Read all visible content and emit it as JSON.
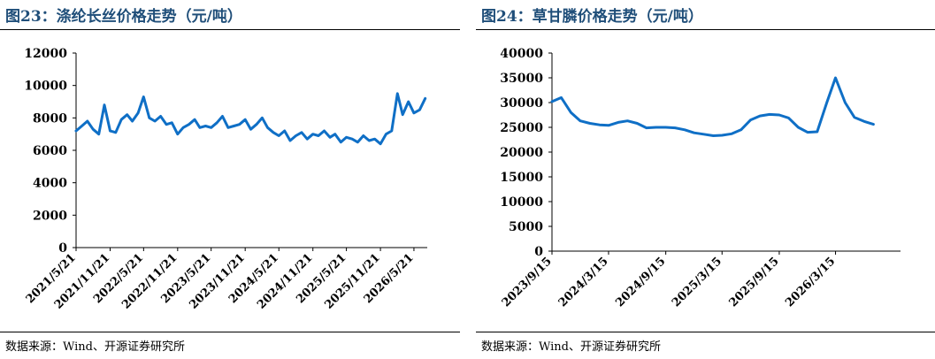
{
  "panels": [
    {
      "title": "图23：涤纶长丝价格走势（元/吨）",
      "source": "数据来源：Wind、开源证券研究所"
    },
    {
      "title": "图24：草甘膦价格走势（元/吨）",
      "source": "数据来源：Wind、开源证券研究所"
    }
  ],
  "chart_data": [
    {
      "type": "line",
      "title": "涤纶长丝价格走势（元/吨）",
      "line_color": "#0f6fc6",
      "ylim": [
        0,
        12000
      ],
      "yticks": [
        "0",
        "2000",
        "4000",
        "6000",
        "8000",
        "10000",
        "12000"
      ],
      "xticks": [
        "2021/5/21",
        "2021/11/21",
        "2022/5/21",
        "2022/11/21",
        "2023/5/21",
        "2023/11/21",
        "2024/5/21",
        "2024/11/21",
        "2025/5/21",
        "2025/11/21",
        "2026/5/21"
      ],
      "grid": false,
      "series": [
        {
          "x": [
            "2021/5/21",
            "2021/6/21",
            "2021/7/21",
            "2021/8/21",
            "2021/9/21",
            "2021/10/21",
            "2021/11/21",
            "2021/12/21",
            "2022/1/21",
            "2022/2/21",
            "2022/3/21",
            "2022/4/21",
            "2022/5/21",
            "2022/6/21",
            "2022/7/21",
            "2022/8/21",
            "2022/9/21",
            "2022/10/21",
            "2022/11/21",
            "2022/12/21",
            "2023/1/21",
            "2023/2/21",
            "2023/3/21",
            "2023/4/21",
            "2023/5/21",
            "2023/6/21",
            "2023/7/21",
            "2023/8/21",
            "2023/9/21",
            "2023/10/21",
            "2023/11/21",
            "2023/12/21",
            "2024/1/21",
            "2024/2/21",
            "2024/3/21",
            "2024/4/21",
            "2024/5/21",
            "2024/6/21",
            "2024/7/21",
            "2024/8/21",
            "2024/9/21",
            "2024/10/21",
            "2024/11/21",
            "2024/12/21",
            "2025/1/21",
            "2025/2/21",
            "2025/3/21",
            "2025/4/21",
            "2025/5/21",
            "2025/6/21",
            "2025/7/21",
            "2025/8/21",
            "2025/9/21",
            "2025/10/21",
            "2025/11/21",
            "2025/12/21",
            "2026/1/21",
            "2026/2/21",
            "2026/3/21",
            "2026/4/21",
            "2026/5/21",
            "2026/6/21",
            "2026/7/21"
          ],
          "values": [
            7200,
            7500,
            7800,
            7300,
            7000,
            8800,
            7200,
            7100,
            7900,
            8200,
            7800,
            8300,
            9300,
            8000,
            7800,
            8100,
            7600,
            7700,
            7000,
            7400,
            7600,
            7900,
            7400,
            7500,
            7400,
            7700,
            8100,
            7400,
            7500,
            7600,
            7900,
            7300,
            7600,
            8000,
            7400,
            7100,
            6900,
            7200,
            6600,
            6900,
            7100,
            6700,
            7000,
            6900,
            7200,
            6800,
            7000,
            6500,
            6800,
            6700,
            6500,
            6900,
            6600,
            6700,
            6400,
            7000,
            7200,
            9500,
            8200,
            9000,
            8300,
            8500,
            9200
          ]
        }
      ]
    },
    {
      "type": "line",
      "title": "草甘膦价格走势（元/吨）",
      "line_color": "#0f6fc6",
      "ylim": [
        0,
        40000
      ],
      "yticks": [
        "0",
        "5000",
        "10000",
        "15000",
        "20000",
        "25000",
        "30000",
        "35000",
        "40000"
      ],
      "xticks": [
        "2023/9/15",
        "2024/3/15",
        "2024/9/15",
        "2025/3/15",
        "2025/9/15",
        "2026/3/15"
      ],
      "grid": false,
      "series": [
        {
          "x": [
            "2023/9/15",
            "2023/10/15",
            "2023/11/15",
            "2023/12/15",
            "2024/1/15",
            "2024/2/15",
            "2024/3/15",
            "2024/4/15",
            "2024/5/15",
            "2024/6/15",
            "2024/7/15",
            "2024/8/15",
            "2024/9/15",
            "2024/10/15",
            "2024/11/15",
            "2024/12/15",
            "2025/1/15",
            "2025/2/15",
            "2025/3/15",
            "2025/4/15",
            "2025/5/15",
            "2025/6/15",
            "2025/7/15",
            "2025/8/15",
            "2025/9/15",
            "2025/10/15",
            "2025/11/15",
            "2025/12/15",
            "2026/1/15",
            "2026/2/15",
            "2026/3/15",
            "2026/4/15",
            "2026/5/15",
            "2026/6/15",
            "2026/7/15"
          ],
          "values": [
            30200,
            31000,
            28000,
            26300,
            25800,
            25500,
            25400,
            26000,
            26300,
            25800,
            24900,
            25000,
            25000,
            24900,
            24500,
            23900,
            23600,
            23300,
            23400,
            23700,
            24500,
            26500,
            27300,
            27600,
            27500,
            26900,
            25000,
            24000,
            24100,
            30000,
            35000,
            30000,
            27000,
            26200,
            25600
          ]
        }
      ]
    }
  ]
}
